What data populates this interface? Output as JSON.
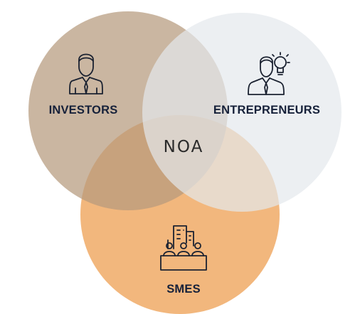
{
  "diagram": {
    "type": "venn",
    "center_logo": "NOA",
    "sets": [
      {
        "label": "INVESTORS",
        "icon": "investor-person-icon",
        "color": "#b59a7d"
      },
      {
        "label": "ENTREPRENEURS",
        "icon": "entrepreneur-lightbulb-icon",
        "color": "#e4e8ec"
      },
      {
        "label": "SMES",
        "icon": "buildings-people-icon",
        "color": "#f0aa66"
      }
    ]
  }
}
